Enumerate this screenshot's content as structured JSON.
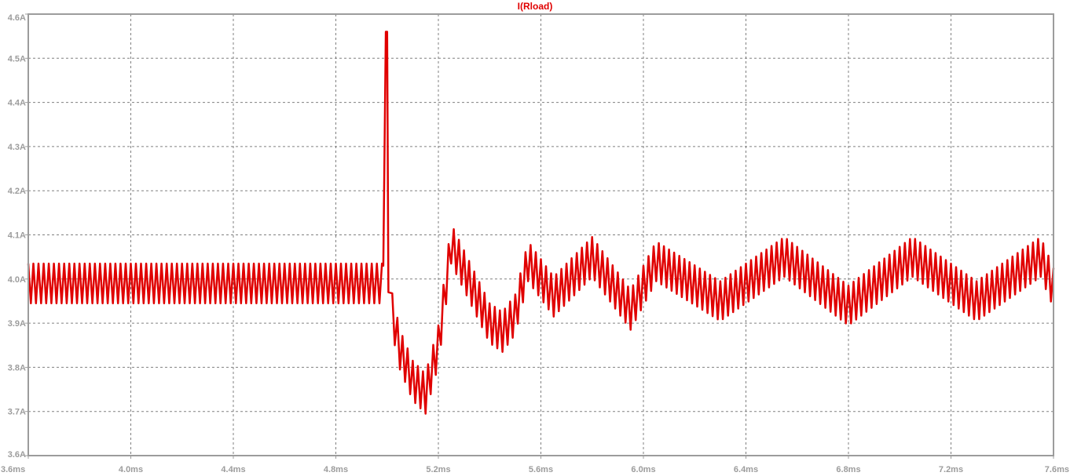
{
  "chart_data": {
    "type": "line",
    "title": "I(Rload)",
    "xlabel": "",
    "ylabel": "",
    "xlim": [
      3.6,
      7.6
    ],
    "ylim": [
      3.6,
      4.6
    ],
    "x_unit": "ms",
    "y_unit": "A",
    "x_ticks": [
      "3.6ms",
      "4.0ms",
      "4.4ms",
      "4.8ms",
      "5.2ms",
      "5.6ms",
      "6.0ms",
      "6.4ms",
      "6.8ms",
      "7.2ms",
      "7.6ms"
    ],
    "y_ticks": [
      "3.6A",
      "3.7A",
      "3.8A",
      "3.9A",
      "4.0A",
      "4.1A",
      "4.2A",
      "4.3A",
      "4.4A",
      "4.5A",
      "4.6A"
    ],
    "grid": true,
    "colors": {
      "trace": "#e00000",
      "title": "#e00000",
      "axis": "#9c9c9c",
      "grid": "#808080"
    },
    "series": [
      {
        "name": "I(Rload)",
        "description_points": {
          "x": [
            3.6,
            4.98,
            5.0,
            5.01,
            5.05,
            5.1,
            5.15,
            5.2,
            5.25,
            5.3,
            5.4,
            5.45,
            5.5,
            5.55,
            5.65,
            5.8,
            5.95,
            6.05,
            6.3,
            6.55,
            6.8,
            7.05,
            7.3,
            7.55,
            7.6
          ],
          "y": [
            3.99,
            3.99,
            4.56,
            3.95,
            3.84,
            3.77,
            3.74,
            3.85,
            4.08,
            4.02,
            3.9,
            3.88,
            3.92,
            4.04,
            3.96,
            4.05,
            3.93,
            4.04,
            3.95,
            4.05,
            3.94,
            4.05,
            3.95,
            4.05,
            3.98
          ]
        },
        "ripple_amplitude": 0.045,
        "ripple_period": 0.02
      }
    ]
  }
}
